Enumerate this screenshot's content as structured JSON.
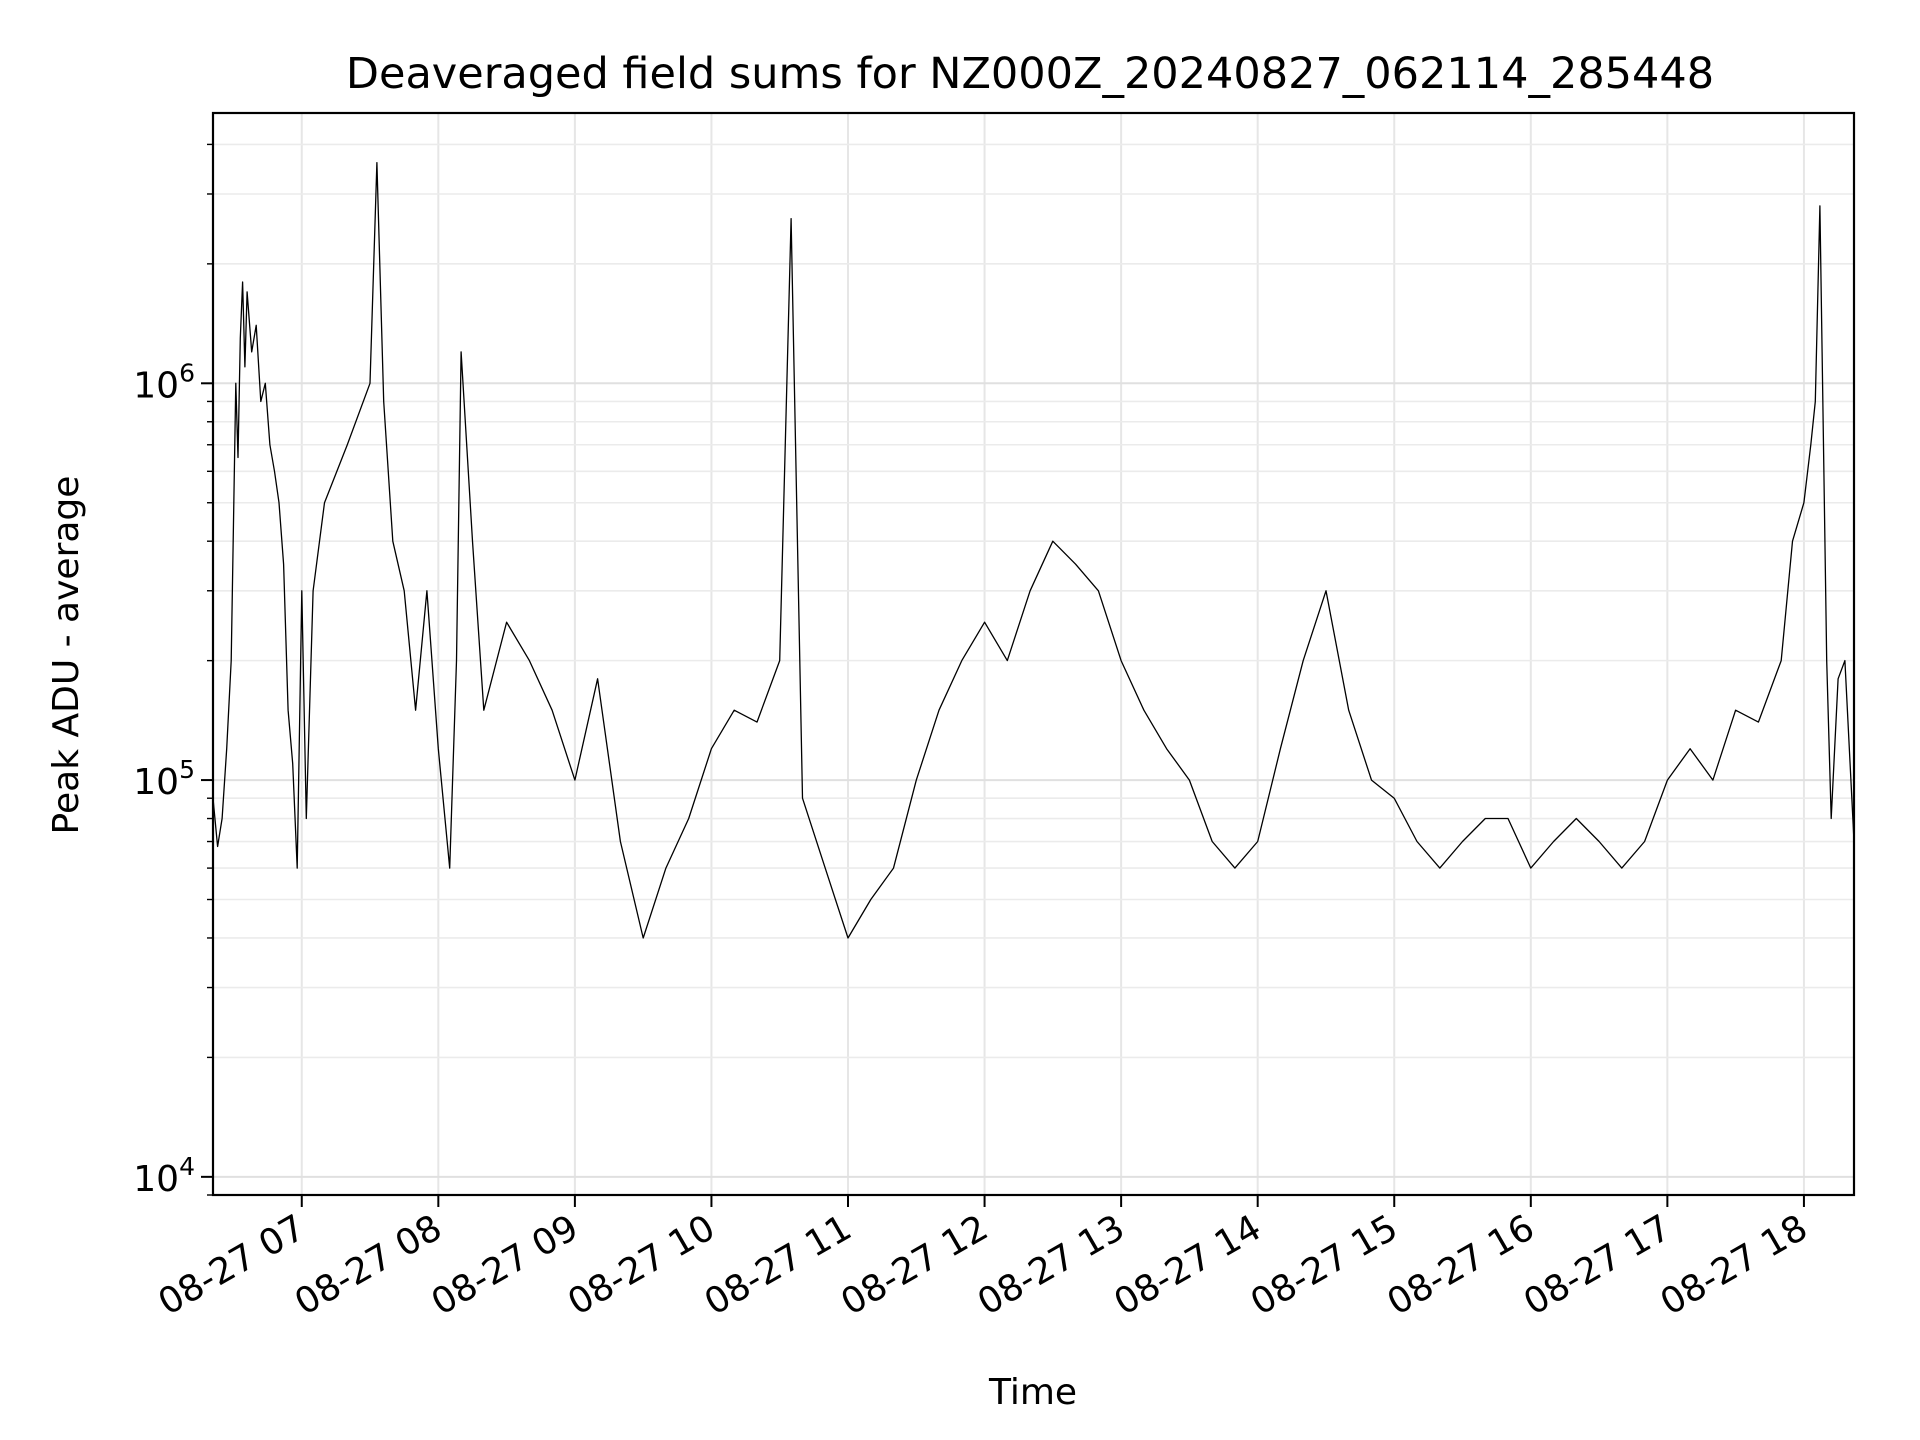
{
  "chart_data": {
    "type": "line",
    "title": "Deaveraged field sums for NZ000Z_20240827_062114_285448",
    "xlabel": "Time",
    "ylabel": "Peak ADU - average",
    "yscale": "log",
    "ylim": [
      9000,
      4800000
    ],
    "xlim": [
      "2024-08-27 06:21",
      "2024-08-27 18:22"
    ],
    "grid": true,
    "line_color": "#000000",
    "x_ticks": [
      {
        "t": "2024-08-27 07:00",
        "label": "08-27 07"
      },
      {
        "t": "2024-08-27 08:00",
        "label": "08-27 08"
      },
      {
        "t": "2024-08-27 09:00",
        "label": "08-27 09"
      },
      {
        "t": "2024-08-27 10:00",
        "label": "08-27 10"
      },
      {
        "t": "2024-08-27 11:00",
        "label": "08-27 11"
      },
      {
        "t": "2024-08-27 12:00",
        "label": "08-27 12"
      },
      {
        "t": "2024-08-27 13:00",
        "label": "08-27 13"
      },
      {
        "t": "2024-08-27 14:00",
        "label": "08-27 14"
      },
      {
        "t": "2024-08-27 15:00",
        "label": "08-27 15"
      },
      {
        "t": "2024-08-27 16:00",
        "label": "08-27 16"
      },
      {
        "t": "2024-08-27 17:00",
        "label": "08-27 17"
      },
      {
        "t": "2024-08-27 18:00",
        "label": "08-27 18"
      }
    ],
    "y_ticks": [
      {
        "value": 10000,
        "base": "10",
        "exp": "4"
      },
      {
        "value": 100000,
        "base": "10",
        "exp": "5"
      },
      {
        "value": 1000000,
        "base": "10",
        "exp": "6"
      }
    ],
    "series": [
      {
        "x": [
          "06:21",
          "06:23",
          "06:25",
          "06:27",
          "06:29",
          "06:31",
          "06:32",
          "06:33",
          "06:34",
          "06:35",
          "06:36",
          "06:38",
          "06:40",
          "06:42",
          "06:44",
          "06:46",
          "06:48",
          "06:50",
          "06:52",
          "06:54",
          "06:56",
          "06:58",
          "07:00",
          "07:02",
          "07:05",
          "07:10",
          "07:20",
          "07:30",
          "07:33",
          "07:36",
          "07:40",
          "07:45",
          "07:50",
          "07:55",
          "08:00",
          "08:05",
          "08:08",
          "08:10",
          "08:15",
          "08:20",
          "08:30",
          "08:40",
          "08:50",
          "09:00",
          "09:10",
          "09:20",
          "09:30",
          "09:40",
          "09:50",
          "10:00",
          "10:10",
          "10:20",
          "10:30",
          "10:35",
          "10:40",
          "10:50",
          "11:00",
          "11:10",
          "11:20",
          "11:30",
          "11:40",
          "11:50",
          "12:00",
          "12:10",
          "12:20",
          "12:30",
          "12:40",
          "12:50",
          "13:00",
          "13:10",
          "13:20",
          "13:30",
          "13:40",
          "13:50",
          "14:00",
          "14:10",
          "14:20",
          "14:30",
          "14:40",
          "14:50",
          "15:00",
          "15:10",
          "15:20",
          "15:30",
          "15:40",
          "15:50",
          "16:00",
          "16:10",
          "16:20",
          "16:30",
          "16:40",
          "16:50",
          "17:00",
          "17:10",
          "17:20",
          "17:30",
          "17:40",
          "17:50",
          "17:55",
          "18:00",
          "18:03",
          "18:05",
          "18:07",
          "18:08",
          "18:10",
          "18:12",
          "18:15",
          "18:18",
          "18:22"
        ],
        "y": [
          90000,
          68000,
          80000,
          120000,
          200000,
          1000000,
          650000,
          1300000,
          1800000,
          1100000,
          1700000,
          1200000,
          1400000,
          900000,
          1000000,
          700000,
          600000,
          500000,
          350000,
          150000,
          110000,
          60000,
          300000,
          80000,
          300000,
          500000,
          700000,
          1000000,
          3600000,
          900000,
          400000,
          300000,
          150000,
          300000,
          120000,
          60000,
          200000,
          1200000,
          400000,
          150000,
          250000,
          200000,
          150000,
          100000,
          180000,
          70000,
          40000,
          60000,
          80000,
          120000,
          150000,
          140000,
          200000,
          2600000,
          90000,
          60000,
          40000,
          50000,
          60000,
          100000,
          150000,
          200000,
          250000,
          200000,
          300000,
          400000,
          350000,
          300000,
          200000,
          150000,
          120000,
          100000,
          70000,
          60000,
          70000,
          120000,
          200000,
          300000,
          150000,
          100000,
          90000,
          70000,
          60000,
          70000,
          80000,
          80000,
          60000,
          70000,
          80000,
          70000,
          60000,
          70000,
          100000,
          120000,
          100000,
          150000,
          140000,
          200000,
          400000,
          500000,
          700000,
          900000,
          2800000,
          1200000,
          200000,
          80000,
          180000,
          200000,
          70000
        ]
      }
    ]
  }
}
